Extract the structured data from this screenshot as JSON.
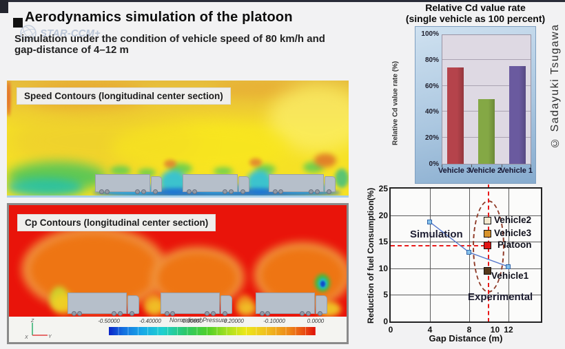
{
  "header": {
    "title": "Aerodynamics simulation of  the platoon",
    "subtitle_line1": "Simulation under the condition of vehicle speed of 80 km/h and",
    "subtitle_line2": "gap-distance of 4–12 m",
    "watermark": "STAR-CCM+"
  },
  "copyright": "© Sadayuki Tsugawa",
  "speed_panel": {
    "label": "Speed Contours (longitudinal center section)"
  },
  "cp_panel": {
    "label": "Cp Contours (longitudinal center section)",
    "colorbar": {
      "title": "Normalised Pressure",
      "ticks": [
        "-0.50000",
        "-0.40000",
        "-0.30000",
        "-0.20000",
        "-0.10000",
        "0.0000"
      ]
    },
    "triad": {
      "x": "X",
      "y": "Y",
      "z": "Z"
    }
  },
  "chart_data": [
    {
      "type": "bar",
      "title": "Relative Cd value rate",
      "subtitle": "(single vehicle as 100 percent)",
      "ylabel": "Relative Cd value rate (%)",
      "categories": [
        "Vehicle 3",
        "Vehicle 2",
        "Vehicle 1"
      ],
      "values": [
        74,
        50,
        75
      ],
      "bar_colors": [
        "#b5434b",
        "#84a845",
        "#6a5a9f"
      ],
      "yticks": [
        "100%",
        "80%",
        "60%",
        "40%",
        "20%",
        "0%"
      ],
      "ylim": [
        0,
        100
      ],
      "grid": true,
      "legend": "none"
    },
    {
      "type": "line",
      "xlabel": "Gap Distance (m)",
      "ylabel": "Reduction of  fuel Consumption(%)",
      "xlim": [
        0,
        15.3
      ],
      "ylim": [
        0,
        25
      ],
      "xticks": [
        0,
        4,
        8,
        10,
        12
      ],
      "yticks": [
        25,
        20,
        15,
        10,
        5,
        0
      ],
      "grid_x": [
        4,
        8,
        12
      ],
      "grid_y": [
        5,
        10,
        15,
        20
      ],
      "series": [
        {
          "name": "Simulation",
          "color": "#5577cc",
          "marker_fill": "#85c1ea",
          "x": [
            4,
            8,
            12
          ],
          "y": [
            18.7,
            13.0,
            10.3
          ]
        }
      ],
      "experimental": {
        "gap_x": 9.9,
        "points": [
          {
            "name": "Vehicle2",
            "y": 18.9,
            "color": "#f2e7cd"
          },
          {
            "name": "Vehicle3",
            "y": 16.4,
            "color": "#d8932c"
          },
          {
            "name": "Platoon",
            "y": 14.2,
            "color": "#e21515"
          },
          {
            "name": "Vehicle1",
            "y": 9.5,
            "color": "#55381b"
          }
        ]
      },
      "annotations": {
        "simulation": "Simulation",
        "experimental": "Experimental"
      },
      "ref_line": {
        "y": 14.2,
        "x": 10,
        "color": "#e81818"
      }
    }
  ]
}
